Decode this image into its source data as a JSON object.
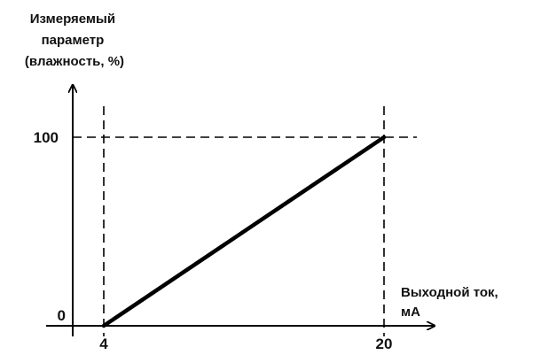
{
  "chart_data": {
    "type": "line",
    "ylabel_lines": [
      "Измеряемый",
      "параметр",
      "(влажность, %)"
    ],
    "xlabel_lines": [
      "Выходной ток,",
      "мА"
    ],
    "xticks": [
      {
        "value": 4,
        "label": "4"
      },
      {
        "value": 20,
        "label": "20"
      }
    ],
    "yticks": [
      {
        "value": 0,
        "label": "0"
      },
      {
        "value": 100,
        "label": "100"
      }
    ],
    "series": [
      {
        "x": [
          4,
          20
        ],
        "y": [
          0,
          100
        ]
      }
    ],
    "grid": "dashed guide lines at x=4, x=20 and y=100",
    "line_color": "#000000"
  }
}
